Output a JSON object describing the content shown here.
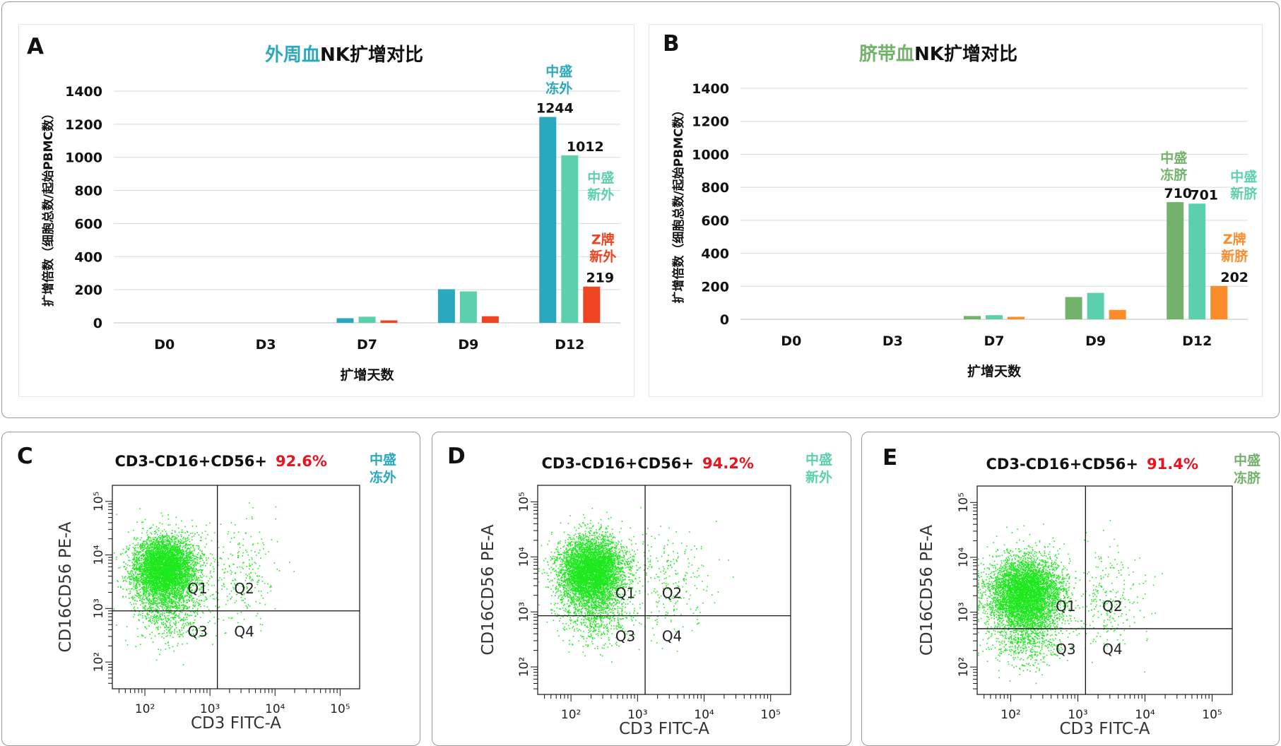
{
  "colors": {
    "teal": "#2aa8c0",
    "mint": "#5cd0ad",
    "red": "#ef4422",
    "green": "#72b26a",
    "orange": "#fb8c2a",
    "red_text": "#e8141e",
    "dot": "#1ee81e"
  },
  "chart_data": [
    {
      "type": "bar",
      "panel_letter": "A",
      "title_colored": "外周血",
      "title_rest": "NK扩增对比",
      "title_color": "#2aa8c0",
      "ylabel": "扩增倍数（细胞总数/起始PBMC数）",
      "xlabel": "扩增天数",
      "ylim": [
        0,
        1400
      ],
      "yticks": [
        "0",
        "200",
        "400",
        "600",
        "800",
        "1000",
        "1200",
        "1400"
      ],
      "categories": [
        "D0",
        "D3",
        "D7",
        "D9",
        "D12"
      ],
      "series": [
        {
          "name": "中盛冻外",
          "label_lines": [
            "中盛",
            "冻外"
          ],
          "color": "#2aa8c0",
          "values": [
            0,
            0,
            28,
            203,
            1244
          ],
          "end_label": "1244"
        },
        {
          "name": "中盛新外",
          "label_lines": [
            "中盛",
            "新外"
          ],
          "color": "#5cd0ad",
          "values": [
            0,
            0,
            37,
            190,
            1012
          ],
          "end_label": "1012"
        },
        {
          "name": "Z牌新外",
          "label_lines": [
            "Z牌",
            "新外"
          ],
          "color": "#ef4422",
          "values": [
            0,
            0,
            15,
            40,
            219
          ],
          "end_label": "219"
        }
      ]
    },
    {
      "type": "bar",
      "panel_letter": "B",
      "title_colored": "脐带血",
      "title_rest": "NK扩增对比",
      "title_color": "#72b26a",
      "ylabel": "扩增倍数（细胞总数/起始PBMC数）",
      "xlabel": "扩增天数",
      "ylim": [
        0,
        1400
      ],
      "yticks": [
        "0",
        "200",
        "400",
        "600",
        "800",
        "1000",
        "1200",
        "1400"
      ],
      "categories": [
        "D0",
        "D3",
        "D7",
        "D9",
        "D12"
      ],
      "series": [
        {
          "name": "中盛冻脐",
          "label_lines": [
            "中盛",
            "冻脐"
          ],
          "color": "#72b26a",
          "values": [
            0,
            0,
            20,
            135,
            710
          ],
          "end_label": "710"
        },
        {
          "name": "中盛新脐",
          "label_lines": [
            "中盛",
            "新脐"
          ],
          "color": "#5cd0ad",
          "values": [
            0,
            0,
            25,
            160,
            701
          ],
          "end_label": "701"
        },
        {
          "name": "Z牌新脐",
          "label_lines": [
            "Z牌",
            "新脐"
          ],
          "color": "#fb8c2a",
          "values": [
            0,
            0,
            15,
            57,
            202
          ],
          "end_label": "202"
        }
      ]
    },
    {
      "type": "scatter",
      "panel_letter": "C",
      "title": "CD3-CD16+CD56+",
      "percent": "92.6%",
      "tag_lines": [
        "中盛",
        "冻外"
      ],
      "tag_color": "#2aa8c0",
      "xlabel": "CD3 FITC-A",
      "ylabel": "CD16CD56 PE-A",
      "quadrants": [
        "Q1",
        "Q2",
        "Q3",
        "Q4"
      ],
      "gate": {
        "x": 1300,
        "y": 900
      },
      "xticks": [
        "10²",
        "10³",
        "10⁴",
        "10⁵"
      ],
      "yticks": [
        "10²",
        "10³",
        "10⁴",
        "10⁵"
      ]
    },
    {
      "type": "scatter",
      "panel_letter": "D",
      "title": "CD3-CD16+CD56+",
      "percent": "94.2%",
      "tag_lines": [
        "中盛",
        "新外"
      ],
      "tag_color": "#5cd0ad",
      "xlabel": "CD3 FITC-A",
      "ylabel": "CD16CD56 PE-A",
      "quadrants": [
        "Q1",
        "Q2",
        "Q3",
        "Q4"
      ],
      "gate": {
        "x": 1300,
        "y": 850
      },
      "xticks": [
        "10²",
        "10³",
        "10⁴",
        "10⁵"
      ],
      "yticks": [
        "10²",
        "10³",
        "10⁴",
        "10⁵"
      ]
    },
    {
      "type": "scatter",
      "panel_letter": "E",
      "title": "CD3-CD16+CD56+",
      "percent": "91.4%",
      "tag_lines": [
        "中盛",
        "冻脐"
      ],
      "tag_color": "#72b26a",
      "xlabel": "CD3 FITC-A",
      "ylabel": "CD16CD56 PE-A",
      "quadrants": [
        "Q1",
        "Q2",
        "Q3",
        "Q4"
      ],
      "gate": {
        "x": 1300,
        "y": 500
      },
      "xticks": [
        "10²",
        "10³",
        "10⁴",
        "10⁵"
      ],
      "yticks": [
        "10²",
        "10³",
        "10⁴",
        "10⁵"
      ]
    }
  ]
}
